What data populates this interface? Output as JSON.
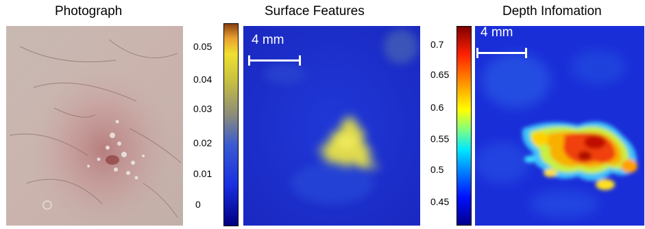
{
  "titles": {
    "photo": "Photograph",
    "surface": "Surface Features",
    "depth": "Depth Infomation"
  },
  "surface_colorbar": {
    "ticks": [
      "0.05",
      "0.04",
      "0.03",
      "0.02",
      "0.01",
      "0"
    ]
  },
  "depth_colorbar": {
    "ticks": [
      "0.7",
      "0.65",
      "0.6",
      "0.55",
      "0.5",
      "0.45"
    ]
  },
  "scale_bars": {
    "surface": "4 mm",
    "depth": "4 mm"
  },
  "colors": {
    "photo_skin": "#c9b6b0",
    "surface_background": "#1f2fd0",
    "surface_lesion": "#e8e24a",
    "depth_background": "#1a2ed8",
    "depth_hot": "#e02a10"
  }
}
